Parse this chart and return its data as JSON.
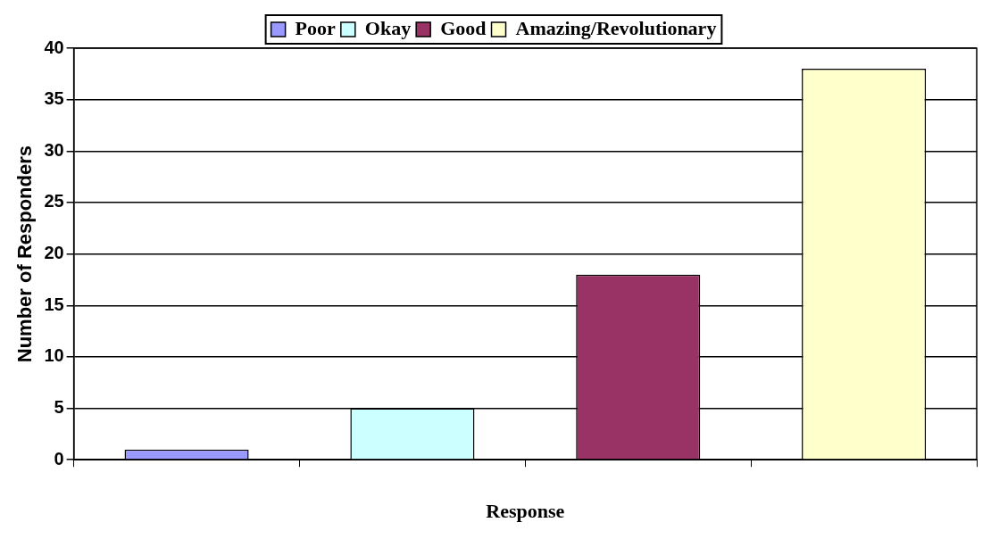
{
  "chart_data": {
    "type": "bar",
    "xlabel": "Response",
    "ylabel": "Number of Responders",
    "categories": [
      null,
      null,
      null,
      null
    ],
    "series": [
      {
        "name": "Poor",
        "color": "#9999ff",
        "values": [
          1,
          null,
          null,
          null
        ]
      },
      {
        "name": "Okay",
        "color": "#ccffff",
        "values": [
          null,
          5,
          null,
          null
        ]
      },
      {
        "name": "Good",
        "color": "#993366",
        "values": [
          null,
          null,
          18,
          null
        ]
      },
      {
        "name": "Amazing/Revolutionary",
        "color": "#ffffcc",
        "values": [
          null,
          null,
          null,
          38
        ]
      }
    ],
    "ylim": [
      0,
      40
    ],
    "yticks": [
      0,
      5,
      10,
      15,
      20,
      25,
      30,
      35,
      40
    ],
    "grid": "y",
    "legend": "top"
  }
}
